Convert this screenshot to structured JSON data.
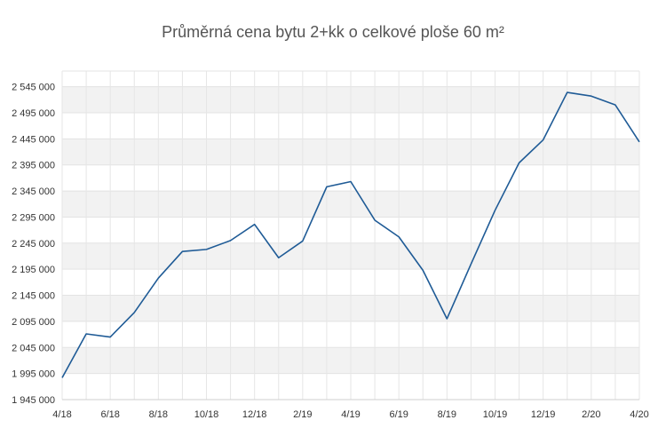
{
  "chart_data": {
    "type": "line",
    "title": "Průměrná cena bytu 2+kk o celkové ploše 60 m²",
    "xlabel": "",
    "ylabel": "",
    "ylim": [
      1945000,
      2575000
    ],
    "grid": true,
    "y_tick_values": [
      1945000,
      1995000,
      2045000,
      2095000,
      2145000,
      2195000,
      2245000,
      2295000,
      2345000,
      2395000,
      2445000,
      2495000,
      2545000
    ],
    "y_tick_labels": [
      "1 945 000",
      "1 995 000",
      "2 045 000",
      "2 095 000",
      "2 145 000",
      "2 195 000",
      "2 245 000",
      "2 295 000",
      "2 345 000",
      "2 395 000",
      "2 445 000",
      "2 495 000",
      "2 545 000"
    ],
    "x_tick_labels": [
      "4/18",
      "6/18",
      "8/18",
      "10/18",
      "12/18",
      "2/19",
      "4/19",
      "6/19",
      "8/19",
      "10/19",
      "12/19",
      "2/20",
      "4/20"
    ],
    "x": [
      "4/18",
      "5/18",
      "6/18",
      "7/18",
      "8/18",
      "9/18",
      "10/18",
      "11/18",
      "12/18",
      "1/19",
      "2/19",
      "3/19",
      "4/19",
      "5/19",
      "6/19",
      "7/19",
      "8/19",
      "9/19",
      "10/19",
      "11/19",
      "12/19",
      "1/20",
      "2/20",
      "3/20",
      "4/20"
    ],
    "series": [
      {
        "values": [
          1987000,
          2071000,
          2065000,
          2112000,
          2178000,
          2229000,
          2233000,
          2250000,
          2281000,
          2217000,
          2249000,
          2353000,
          2363000,
          2289000,
          2257000,
          2193000,
          2100000,
          2205000,
          2308000,
          2399000,
          2443000,
          2534000,
          2527000,
          2510000,
          2439000
        ],
        "color": "#1f5b96"
      }
    ]
  }
}
